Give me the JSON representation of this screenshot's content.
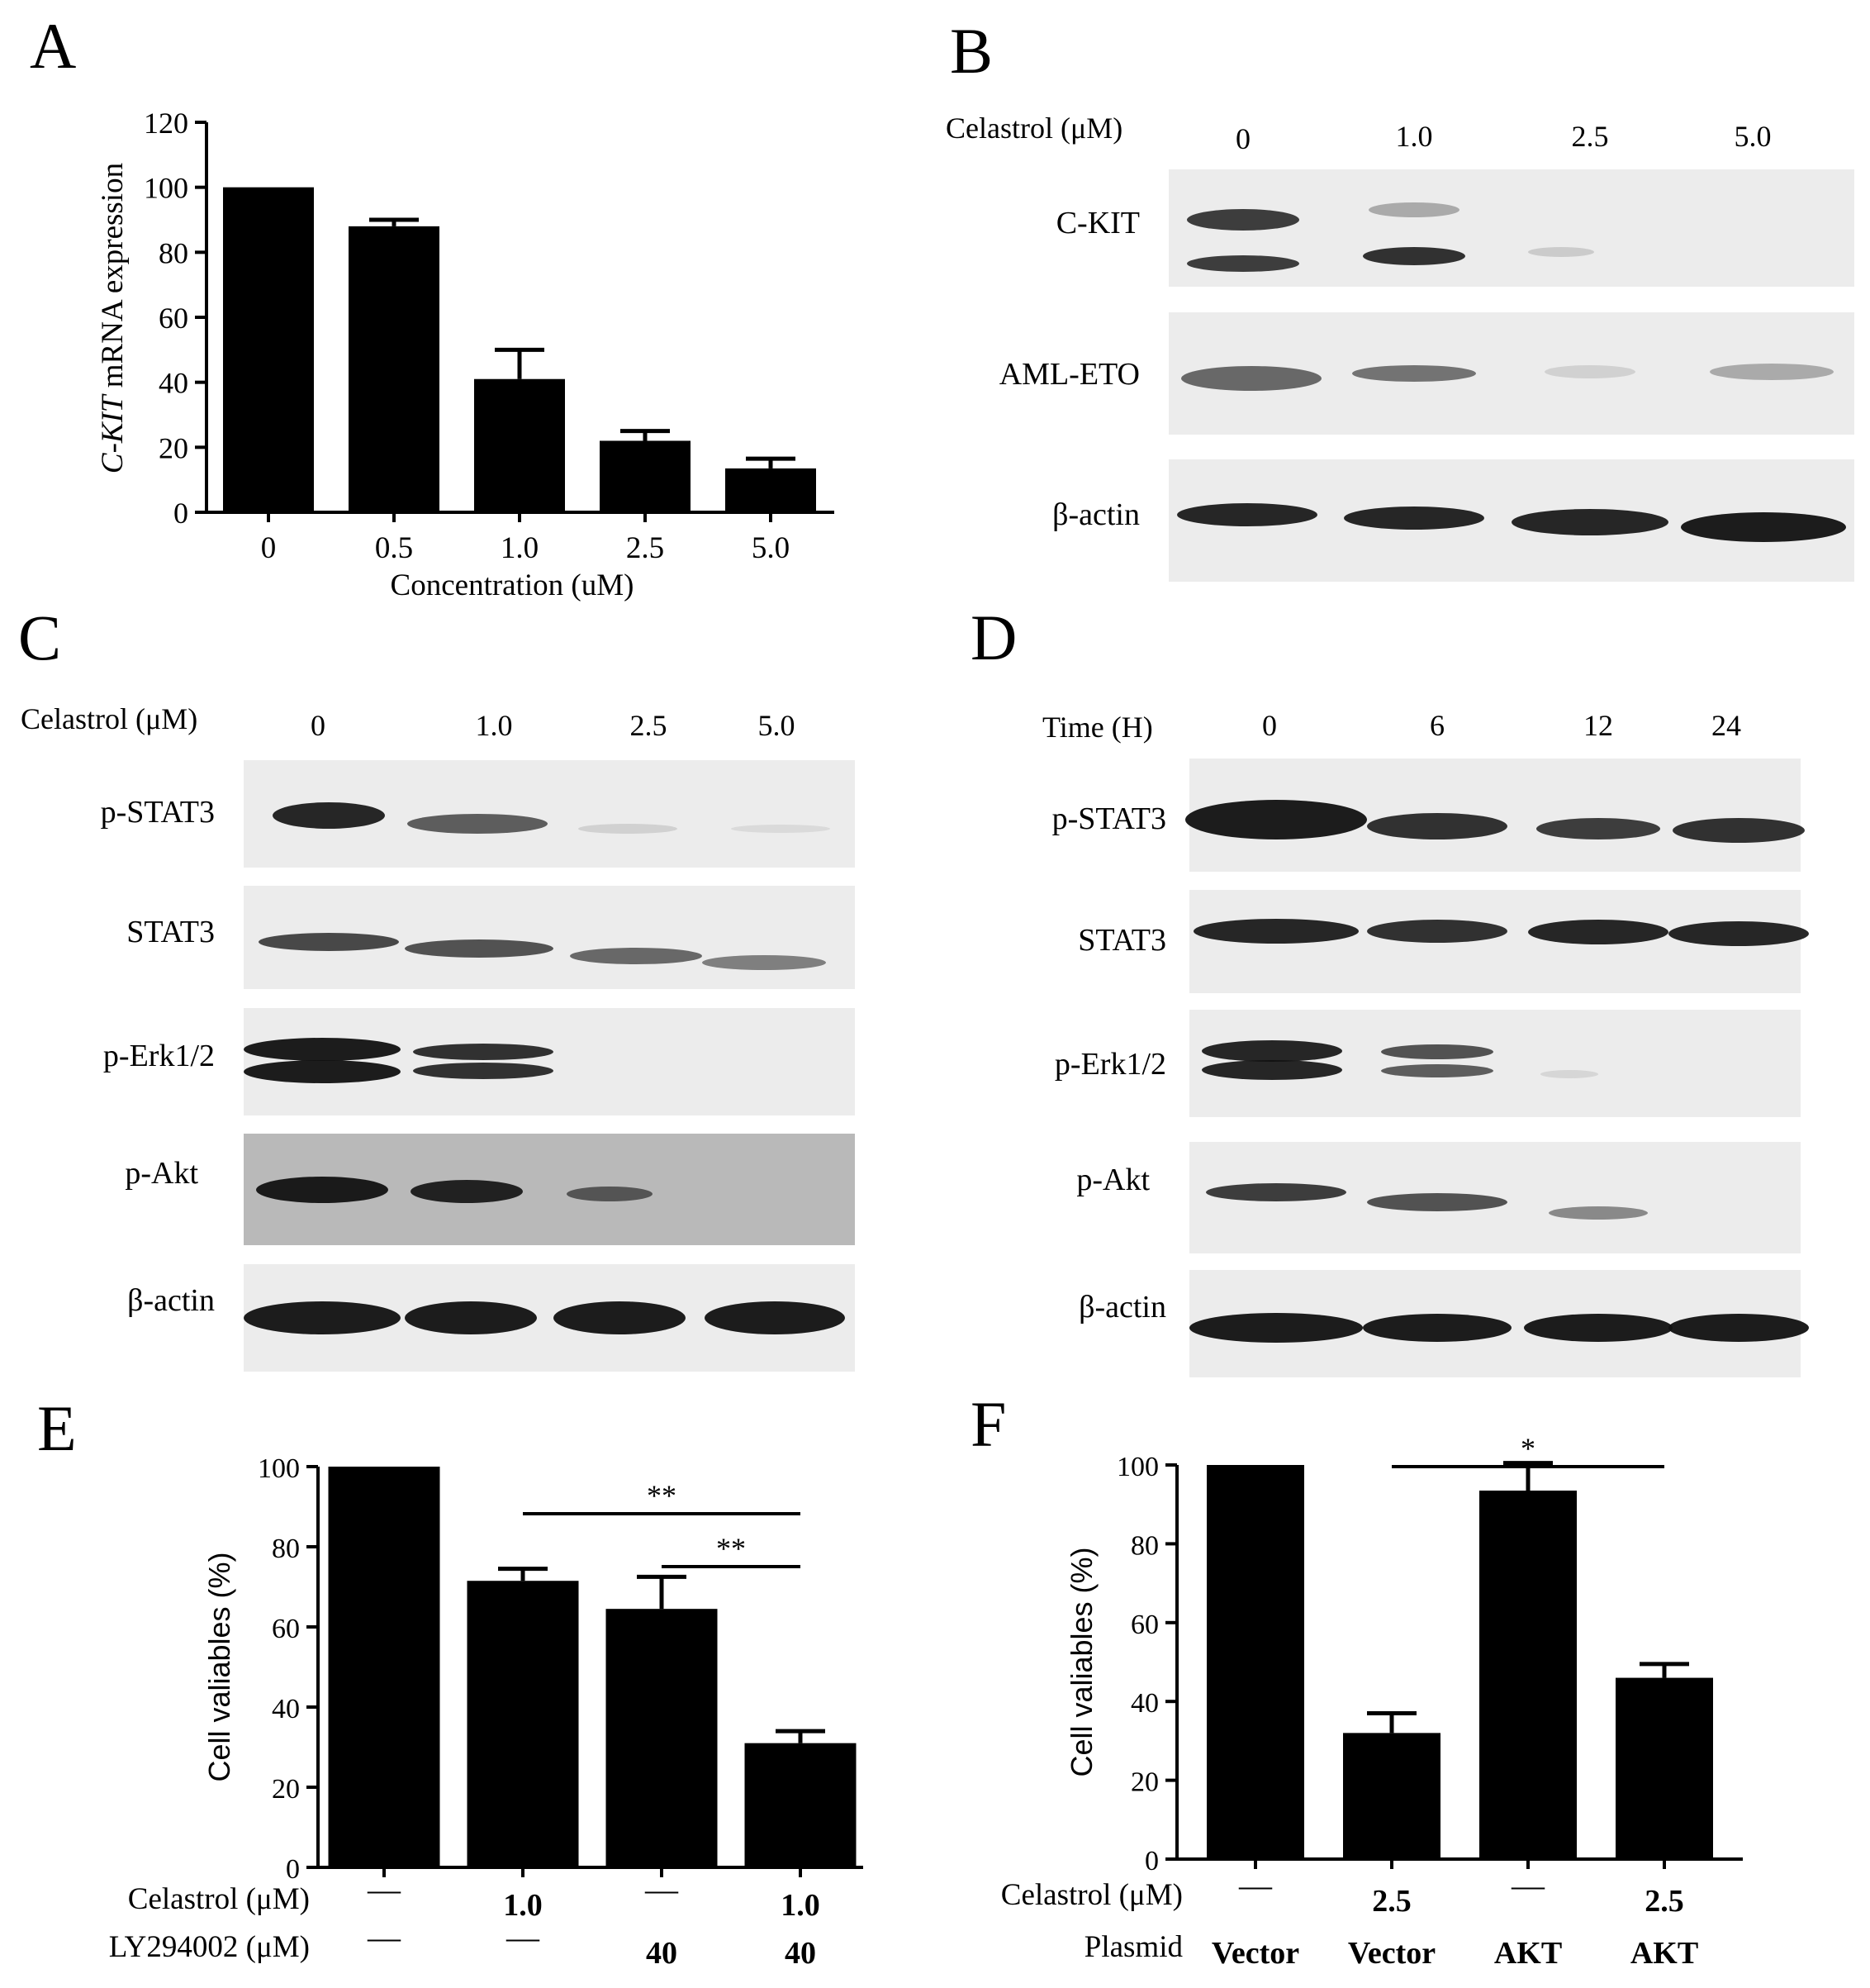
{
  "panels": {
    "A": {
      "letter": "A",
      "chart_data": {
        "type": "bar",
        "categories": [
          "0",
          "0.5",
          "1.0",
          "2.5",
          "5.0"
        ],
        "values": [
          100,
          88,
          41,
          22,
          13.5
        ],
        "errors": [
          0,
          2,
          9,
          3,
          3
        ],
        "ylim": [
          0,
          120
        ],
        "yticks": [
          "0",
          "20",
          "40",
          "60",
          "80",
          "100",
          "120"
        ],
        "ylabel_italic": "C-KIT",
        "ylabel_rest": " mRNA expression",
        "xlabel": "Concentration (uM)"
      }
    },
    "B": {
      "letter": "B",
      "header_label": "Celastrol (μM)",
      "lanes": [
        "0",
        "1.0",
        "2.5",
        "5.0"
      ],
      "rows": [
        "C-KIT",
        "AML-ETO",
        "β-actin"
      ]
    },
    "C": {
      "letter": "C",
      "header_label": "Celastrol (μM)",
      "lanes": [
        "0",
        "1.0",
        "2.5",
        "5.0"
      ],
      "rows": [
        "p-STAT3",
        "STAT3",
        "p-Erk1/2",
        "p-Akt",
        "β-actin"
      ]
    },
    "D": {
      "letter": "D",
      "header_label": "Time (H)",
      "lanes": [
        "0",
        "6",
        "12",
        "24"
      ],
      "rows": [
        "p-STAT3",
        "STAT3",
        "p-Erk1/2",
        "p-Akt",
        "β-actin"
      ]
    },
    "E": {
      "letter": "E",
      "chart_data": {
        "type": "bar",
        "values": [
          100,
          71.5,
          64.5,
          31
        ],
        "errors": [
          0,
          3,
          8,
          3
        ],
        "ylim": [
          0,
          100
        ],
        "yticks": [
          "0",
          "20",
          "40",
          "60",
          "80",
          "100"
        ],
        "ylabel": "Cell valiables (%)",
        "row_labels": [
          "Celastrol (μM)",
          "LY294002 (μM)"
        ],
        "rows": [
          [
            "—",
            "1.0",
            "—",
            "1.0"
          ],
          [
            "—",
            "—",
            "40",
            "40"
          ]
        ],
        "significance": [
          {
            "from": 2,
            "to": 4,
            "label": "**"
          },
          {
            "from": 3,
            "to": 4,
            "label": "**"
          }
        ]
      }
    },
    "F": {
      "letter": "F",
      "chart_data": {
        "type": "bar",
        "values": [
          100,
          32,
          93.5,
          46
        ],
        "errors": [
          0,
          5,
          7,
          3.5
        ],
        "ylim": [
          0,
          100
        ],
        "yticks": [
          "0",
          "20",
          "40",
          "60",
          "80",
          "100"
        ],
        "ylabel": "Cell valiables (%)",
        "row_labels": [
          "Celastrol (μM)",
          "Plasmid"
        ],
        "rows": [
          [
            "—",
            "2.5",
            "—",
            "2.5"
          ],
          [
            "Vector",
            "Vector",
            "AKT",
            "AKT"
          ]
        ],
        "significance": [
          {
            "from": 2,
            "to": 4,
            "label": "*"
          }
        ]
      }
    }
  }
}
